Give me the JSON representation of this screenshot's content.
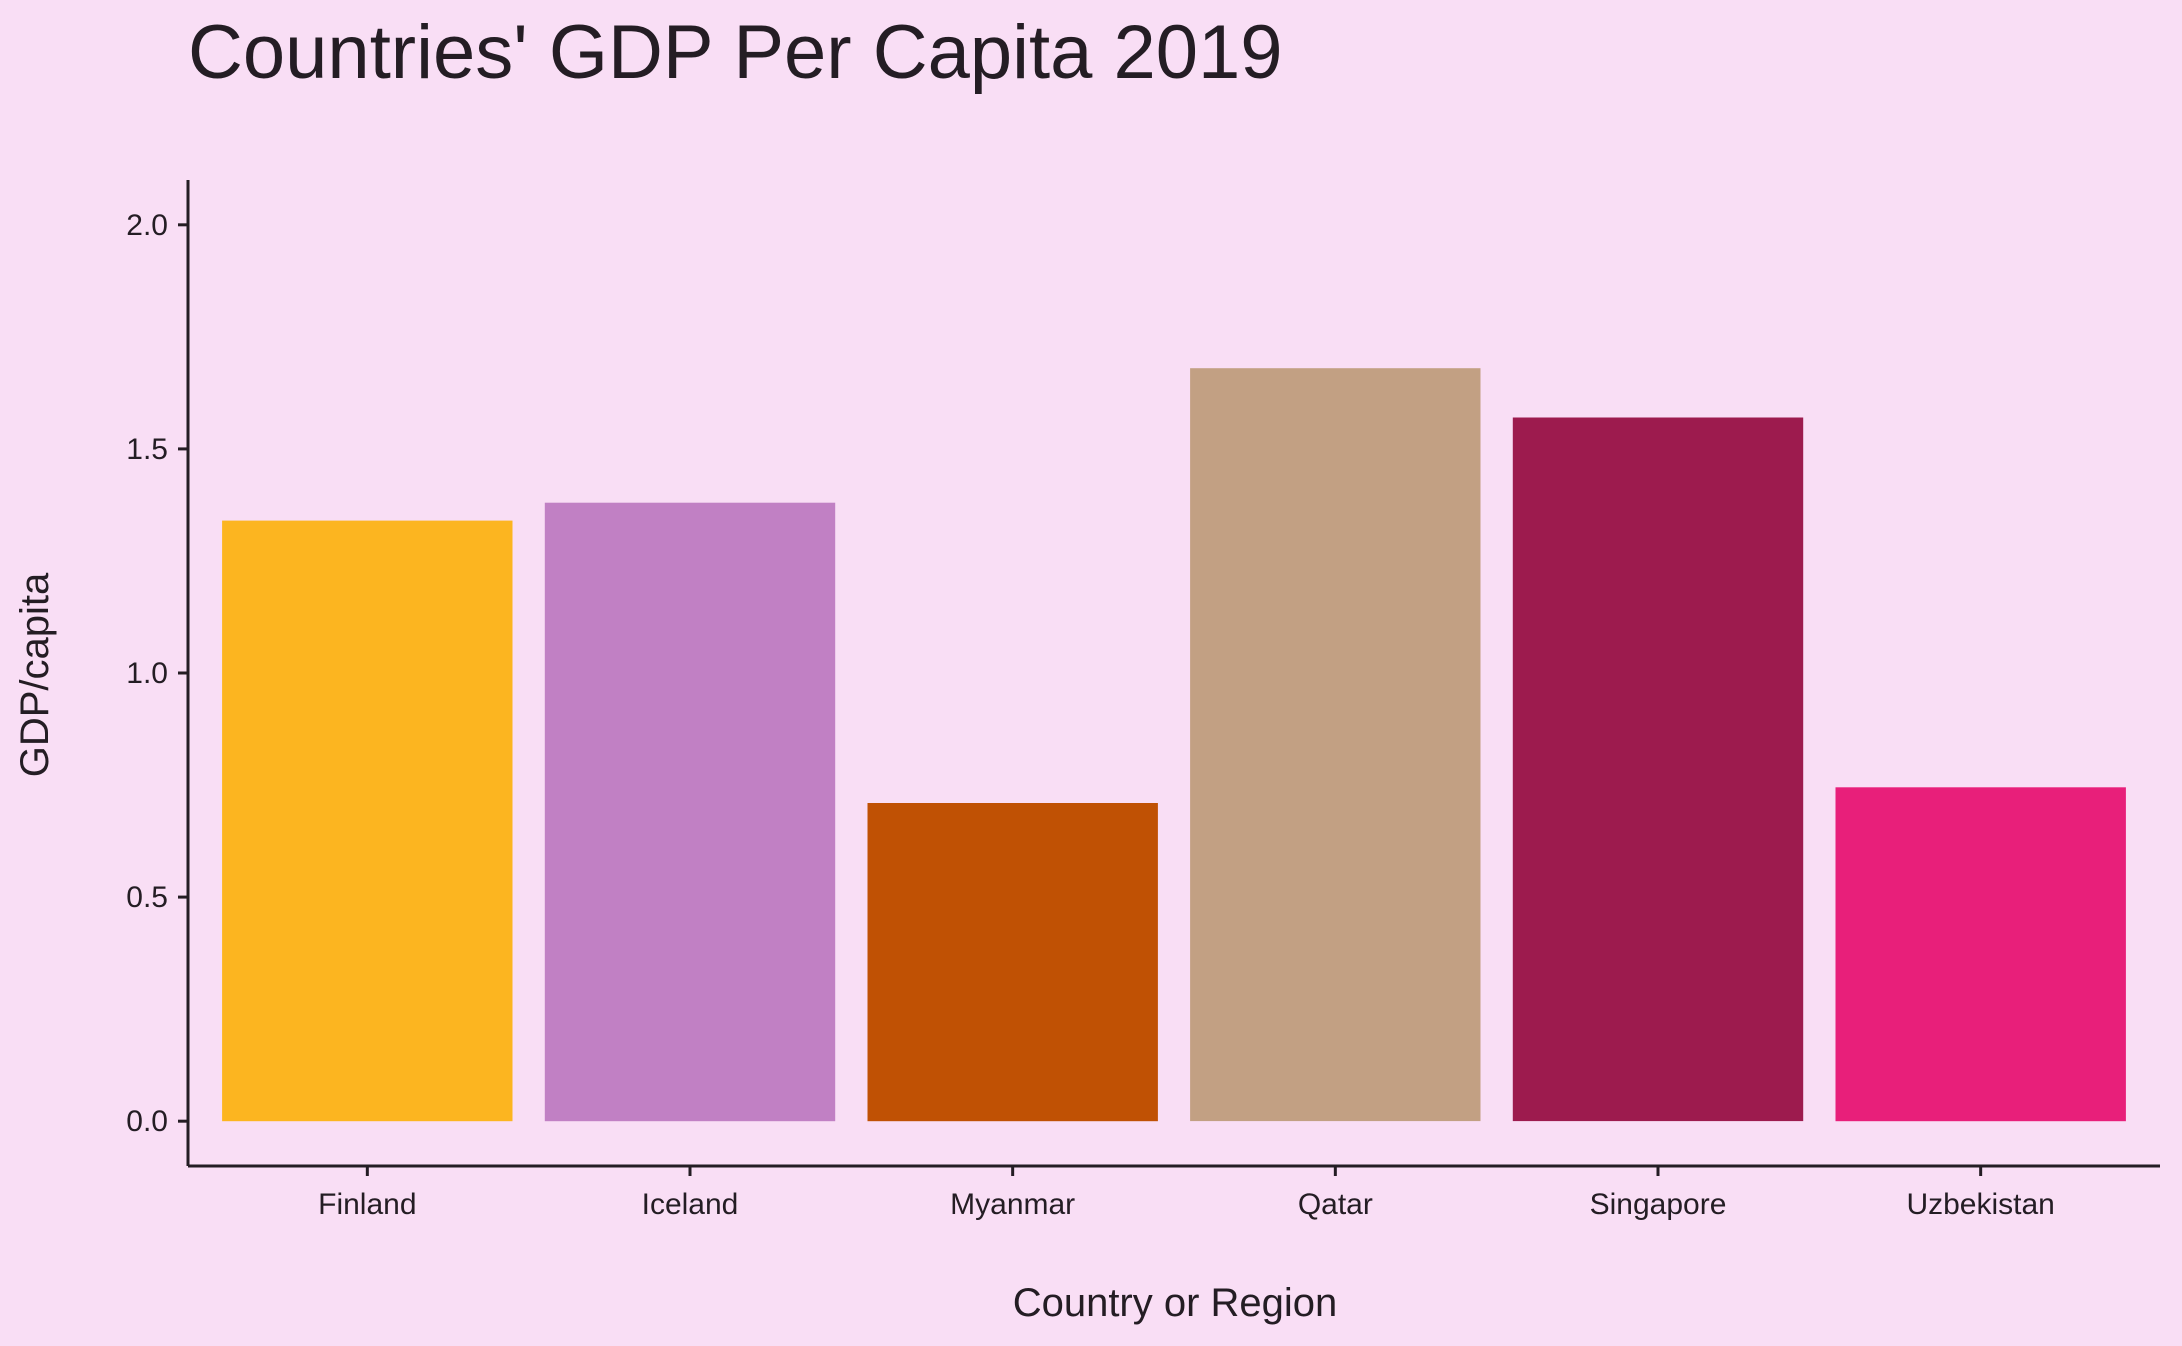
{
  "chart_data": {
    "type": "bar",
    "title": "Countries' GDP Per Capita 2019",
    "xlabel": "Country or Region",
    "ylabel": "GDP/capita",
    "categories": [
      "Finland",
      "Iceland",
      "Myanmar",
      "Qatar",
      "Singapore",
      "Uzbekistan"
    ],
    "values": [
      1.34,
      1.38,
      0.71,
      1.68,
      1.57,
      0.745
    ],
    "colors": [
      "#fcb520",
      "#c180c4",
      "#c05104",
      "#c2a083",
      "#9d1b4e",
      "#e81f7a"
    ],
    "yticks": [
      0.0,
      0.5,
      1.0,
      1.5,
      2.0
    ],
    "ytick_labels": [
      "0.0",
      "0.5",
      "1.0",
      "1.5",
      "2.0"
    ],
    "ylim": [
      -0.1,
      2.1
    ],
    "grid": false,
    "legend": "none"
  },
  "style": {
    "background": "#f9def5",
    "axis_color": "#241d24"
  }
}
